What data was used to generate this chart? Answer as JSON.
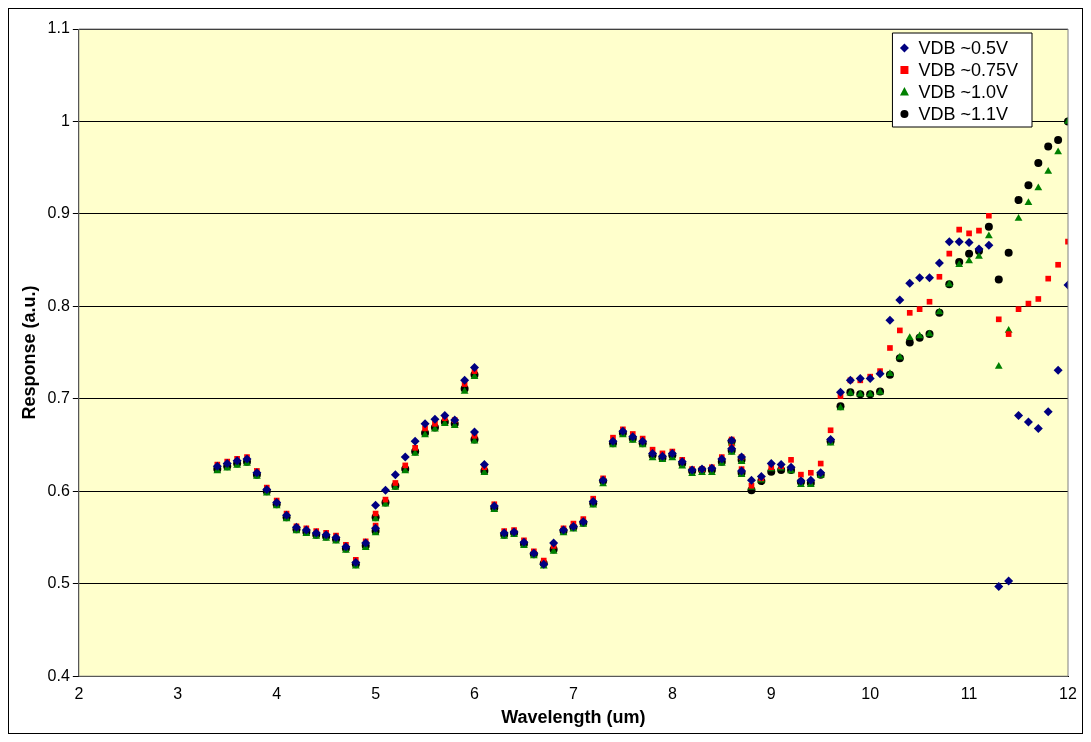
{
  "chart_data": {
    "type": "scatter",
    "xlabel": "Wavelength (um)",
    "ylabel": "Response (a.u.)",
    "x": [
      3.4,
      3.5,
      3.6,
      3.7,
      3.8,
      3.9,
      4.0,
      4.1,
      4.2,
      4.3,
      4.4,
      4.5,
      4.6,
      4.7,
      4.8,
      4.9,
      5.0,
      5.0,
      5.1,
      5.2,
      5.3,
      5.4,
      5.5,
      5.6,
      5.7,
      5.8,
      5.9,
      6.0,
      6.0,
      6.1,
      6.2,
      6.3,
      6.4,
      6.5,
      6.6,
      6.7,
      6.8,
      6.9,
      7.0,
      7.1,
      7.2,
      7.3,
      7.4,
      7.5,
      7.6,
      7.7,
      7.8,
      7.9,
      8.0,
      8.1,
      8.2,
      8.3,
      8.4,
      8.5,
      8.6,
      8.6,
      8.7,
      8.7,
      8.8,
      8.9,
      9.0,
      9.1,
      9.2,
      9.3,
      9.4,
      9.5,
      9.6,
      9.7,
      9.8,
      9.9,
      10.0,
      10.1,
      10.2,
      10.3,
      10.4,
      10.5,
      10.6,
      10.7,
      10.8,
      10.9,
      11.0,
      11.1,
      11.2,
      11.3,
      11.4,
      11.5,
      11.6,
      11.7,
      11.8,
      11.9,
      12.0
    ],
    "series": [
      {
        "name": "VDB ~0.5V",
        "color": "#000080",
        "marker": "diamond",
        "values": [
          0.627,
          0.63,
          0.633,
          0.635,
          0.62,
          0.602,
          0.588,
          0.574,
          0.561,
          0.558,
          0.555,
          0.553,
          0.55,
          0.54,
          0.523,
          0.544,
          0.585,
          0.56,
          0.601,
          0.618,
          0.637,
          0.654,
          0.673,
          0.678,
          0.682,
          0.677,
          0.72,
          0.734,
          0.664,
          0.629,
          0.584,
          0.555,
          0.556,
          0.545,
          0.533,
          0.521,
          0.544,
          0.558,
          0.562,
          0.567,
          0.589,
          0.612,
          0.654,
          0.665,
          0.659,
          0.654,
          0.641,
          0.638,
          0.641,
          0.632,
          0.623,
          0.624,
          0.625,
          0.635,
          0.646,
          0.655,
          0.637,
          0.622,
          0.612,
          0.616,
          0.63,
          0.629,
          0.626,
          0.611,
          0.612,
          0.62,
          0.656,
          0.707,
          0.72,
          0.722,
          0.722,
          0.727,
          0.785,
          0.807,
          0.825,
          0.831,
          0.831,
          0.847,
          0.87,
          0.87,
          0.869,
          0.862,
          0.866,
          0.497,
          0.503,
          0.682,
          0.675,
          0.668,
          0.686,
          0.731,
          0.823
        ]
      },
      {
        "name": "VDB ~0.75V",
        "color": "#ff0000",
        "marker": "square",
        "values": [
          0.629,
          0.632,
          0.635,
          0.637,
          0.622,
          0.604,
          0.59,
          0.576,
          0.562,
          0.56,
          0.557,
          0.555,
          0.552,
          0.542,
          0.526,
          0.546,
          0.576,
          0.563,
          0.591,
          0.609,
          0.628,
          0.647,
          0.668,
          0.673,
          0.679,
          0.677,
          0.716,
          0.73,
          0.66,
          0.626,
          0.586,
          0.557,
          0.558,
          0.547,
          0.535,
          0.525,
          0.541,
          0.56,
          0.565,
          0.57,
          0.592,
          0.614,
          0.658,
          0.667,
          0.662,
          0.657,
          0.645,
          0.641,
          0.643,
          0.634,
          0.624,
          0.624,
          0.626,
          0.637,
          0.648,
          0.656,
          0.637,
          0.624,
          0.606,
          0.614,
          0.626,
          0.627,
          0.634,
          0.618,
          0.62,
          0.63,
          0.666,
          0.703,
          0.72,
          0.72,
          0.724,
          0.73,
          0.755,
          0.774,
          0.793,
          0.797,
          0.805,
          0.832,
          0.857,
          0.883,
          0.879,
          0.882,
          0.898,
          0.786,
          0.77,
          0.797,
          0.803,
          0.808,
          0.83,
          0.845,
          0.87
        ]
      },
      {
        "name": "VDB ~1.0V",
        "color": "#008000",
        "marker": "triangle",
        "values": [
          0.622,
          0.625,
          0.628,
          0.63,
          0.616,
          0.598,
          0.584,
          0.57,
          0.557,
          0.554,
          0.551,
          0.549,
          0.546,
          0.536,
          0.519,
          0.539,
          0.57,
          0.555,
          0.586,
          0.604,
          0.622,
          0.641,
          0.661,
          0.667,
          0.673,
          0.671,
          0.708,
          0.724,
          0.654,
          0.62,
          0.58,
          0.551,
          0.553,
          0.541,
          0.53,
          0.519,
          0.535,
          0.555,
          0.559,
          0.564,
          0.585,
          0.608,
          0.65,
          0.661,
          0.655,
          0.65,
          0.636,
          0.634,
          0.636,
          0.627,
          0.619,
          0.62,
          0.62,
          0.63,
          0.642,
          0.652,
          0.632,
          0.618,
          0.604,
          0.612,
          0.624,
          0.625,
          0.622,
          0.607,
          0.607,
          0.617,
          0.652,
          0.69,
          0.706,
          0.705,
          0.705,
          0.707,
          0.727,
          0.745,
          0.766,
          0.768,
          0.77,
          0.794,
          0.824,
          0.845,
          0.849,
          0.854,
          0.876,
          0.735,
          0.774,
          0.895,
          0.912,
          0.928,
          0.946,
          0.967,
          1.0
        ]
      },
      {
        "name": "VDB ~1.1V",
        "color": "#000000",
        "marker": "circle",
        "values": [
          0.624,
          0.627,
          0.63,
          0.632,
          0.618,
          0.6,
          0.586,
          0.572,
          0.559,
          0.556,
          0.553,
          0.551,
          0.548,
          0.538,
          0.521,
          0.541,
          0.572,
          0.557,
          0.588,
          0.606,
          0.624,
          0.643,
          0.663,
          0.669,
          0.675,
          0.673,
          0.711,
          0.726,
          0.656,
          0.622,
          0.582,
          0.553,
          0.555,
          0.543,
          0.532,
          0.522,
          0.537,
          0.557,
          0.561,
          0.566,
          0.587,
          0.611,
          0.652,
          0.663,
          0.657,
          0.652,
          0.639,
          0.636,
          0.639,
          0.63,
          0.622,
          0.623,
          0.623,
          0.632,
          0.644,
          0.654,
          0.634,
          0.62,
          0.601,
          0.611,
          0.621,
          0.623,
          0.623,
          0.61,
          0.609,
          0.618,
          0.654,
          0.692,
          0.707,
          0.705,
          0.705,
          0.708,
          0.726,
          0.744,
          0.761,
          0.766,
          0.77,
          0.793,
          0.824,
          0.848,
          0.857,
          0.86,
          0.886,
          0.829,
          0.858,
          0.915,
          0.931,
          0.955,
          0.973,
          0.98,
          1.0
        ]
      }
    ],
    "xlim": [
      2,
      12
    ],
    "xticks": [
      2,
      3,
      4,
      5,
      6,
      7,
      8,
      9,
      10,
      11,
      12
    ],
    "ylim": [
      0.4,
      1.1
    ],
    "yticks": [
      0.4,
      0.5,
      0.6,
      0.7,
      0.8,
      0.9,
      1,
      1.1
    ],
    "grid": "y",
    "legend": "top right"
  }
}
